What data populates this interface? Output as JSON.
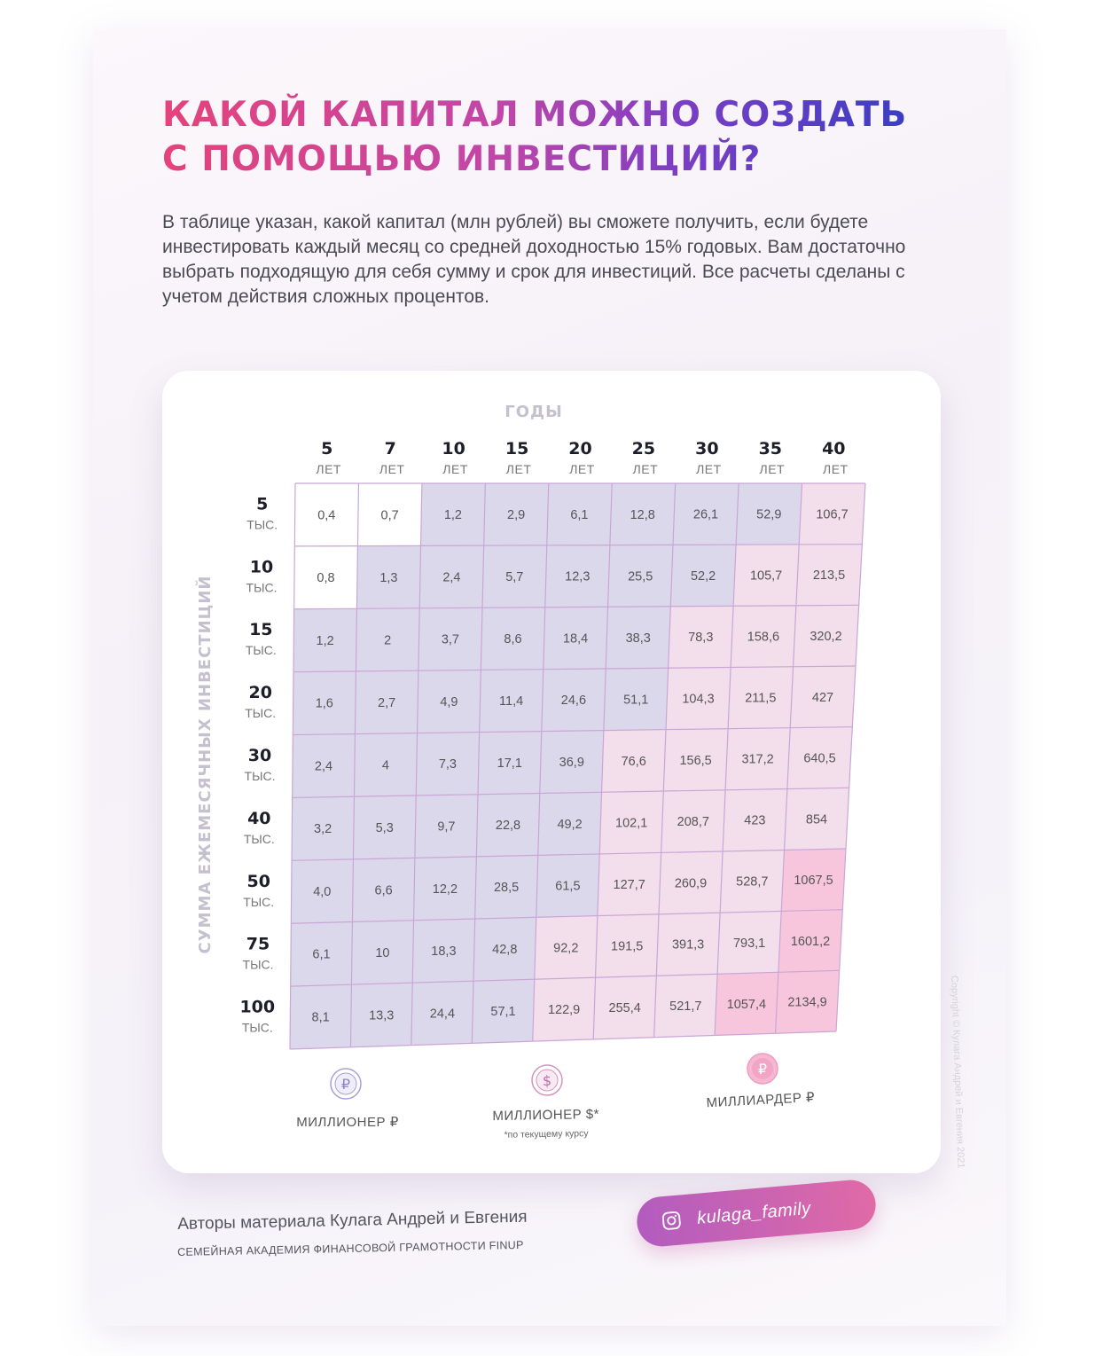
{
  "title": {
    "line1": "КАКОЙ КАПИТАЛ МОЖНО СОЗДАТЬ",
    "line2": "С ПОМОЩЬЮ ИНВЕСТИЦИЙ?"
  },
  "intro": "В таблице указан, какой капитал (млн рублей) вы сможете получить, если будете инвестировать каждый месяц со средней доходностью 15% годовых. Вам достаточно выбрать подходящую для себя сумму и срок для инвестиций. Все расчеты сделаны с учетом действия сложных процентов.",
  "chart_data": {
    "type": "table",
    "x_title": "ГОДЫ",
    "y_title": "СУММА ЕЖЕМЕСЯЧНЫХ ИНВЕСТИЦИЙ",
    "columns": [
      "5",
      "7",
      "10",
      "15",
      "20",
      "25",
      "30",
      "35",
      "40"
    ],
    "column_unit": "ЛЕТ",
    "rows": [
      "5",
      "10",
      "15",
      "20",
      "30",
      "40",
      "50",
      "75",
      "100"
    ],
    "row_unit": "ТЫС.",
    "values": [
      [
        "0,4",
        "0,7",
        "1,2",
        "2,9",
        "6,1",
        "12,8",
        "26,1",
        "52,9",
        "106,7"
      ],
      [
        "0,8",
        "1,3",
        "2,4",
        "5,7",
        "12,3",
        "25,5",
        "52,2",
        "105,7",
        "213,5"
      ],
      [
        "1,2",
        "2",
        "3,7",
        "8,6",
        "18,4",
        "38,3",
        "78,3",
        "158,6",
        "320,2"
      ],
      [
        "1,6",
        "2,7",
        "4,9",
        "11,4",
        "24,6",
        "51,1",
        "104,3",
        "211,5",
        "427"
      ],
      [
        "2,4",
        "4",
        "7,3",
        "17,1",
        "36,9",
        "76,6",
        "156,5",
        "317,2",
        "640,5"
      ],
      [
        "3,2",
        "5,3",
        "9,7",
        "22,8",
        "49,2",
        "102,1",
        "208,7",
        "423",
        "854"
      ],
      [
        "4,0",
        "6,6",
        "12,2",
        "28,5",
        "61,5",
        "127,7",
        "260,9",
        "528,7",
        "1067,5"
      ],
      [
        "6,1",
        "10",
        "18,3",
        "42,8",
        "92,2",
        "191,5",
        "391,3",
        "793,1",
        "1601,2"
      ],
      [
        "8,1",
        "13,3",
        "24,4",
        "57,1",
        "122,9",
        "255,4",
        "521,7",
        "1057,4",
        "2134,9"
      ]
    ],
    "categories": [
      [
        "none",
        "none",
        "rub",
        "rub",
        "rub",
        "rub",
        "rub",
        "rub",
        "usd"
      ],
      [
        "none",
        "rub",
        "rub",
        "rub",
        "rub",
        "rub",
        "rub",
        "usd",
        "usd"
      ],
      [
        "rub",
        "rub",
        "rub",
        "rub",
        "rub",
        "rub",
        "usd",
        "usd",
        "usd"
      ],
      [
        "rub",
        "rub",
        "rub",
        "rub",
        "rub",
        "rub",
        "usd",
        "usd",
        "usd"
      ],
      [
        "rub",
        "rub",
        "rub",
        "rub",
        "rub",
        "usd",
        "usd",
        "usd",
        "usd"
      ],
      [
        "rub",
        "rub",
        "rub",
        "rub",
        "rub",
        "usd",
        "usd",
        "usd",
        "usd"
      ],
      [
        "rub",
        "rub",
        "rub",
        "rub",
        "rub",
        "usd",
        "usd",
        "usd",
        "bil"
      ],
      [
        "rub",
        "rub",
        "rub",
        "rub",
        "usd",
        "usd",
        "usd",
        "usd",
        "bil"
      ],
      [
        "rub",
        "rub",
        "rub",
        "rub",
        "usd",
        "usd",
        "usd",
        "bil",
        "bil"
      ]
    ],
    "colors": {
      "none": "#ffffff",
      "rub": "#dcd8ec",
      "usd": "#f3deec",
      "bil": "#f8c6dc",
      "grid": "#c9a6d6"
    },
    "legend": [
      {
        "key": "rub",
        "icon": "ruble-coin-icon",
        "label": "МИЛЛИОНЕР ₽",
        "note": ""
      },
      {
        "key": "usd",
        "icon": "dollar-coin-icon",
        "label": "МИЛЛИОНЕР $*",
        "note": "*по текущему курсу"
      },
      {
        "key": "bil",
        "icon": "ruble-filled-coin-icon",
        "label": "МИЛЛИАРДЕР ₽",
        "note": ""
      }
    ]
  },
  "copyright": "Copyright © Кулага Андрей и Евгения 2021",
  "footer": {
    "authors": "Авторы материала Кулага Андрей и Евгения",
    "academy": "СЕМЕЙНАЯ АКАДЕМИЯ ФИНАНСОВОЙ ГРАМОТНОСТИ FINUP",
    "instagram_icon": "instagram-icon",
    "instagram_handle": "kulaga_family"
  }
}
